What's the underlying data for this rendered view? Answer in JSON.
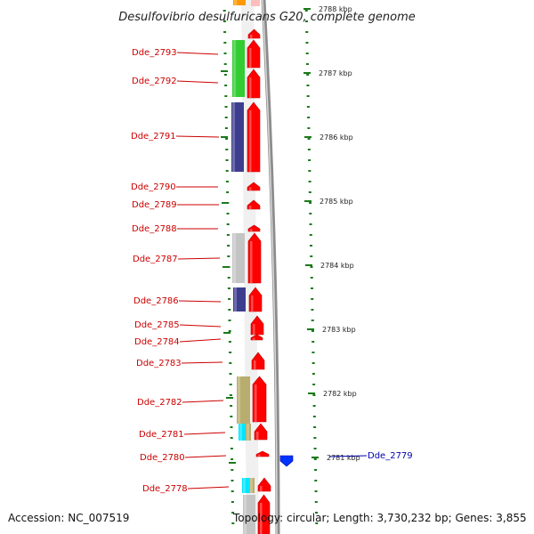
{
  "title": "Desulfovibrio desulfuricans G20, complete genome",
  "accession": "Accession: NC_007519",
  "topology": "Topology: circular; Length: 3,730,232 bp; Genes: 3,855",
  "colors": {
    "forward_gene": "#ff0000",
    "reverse_gene": "#0033ff",
    "forward_label": "#cc0000",
    "reverse_label": "#0000aa",
    "backbone": "#8c8c8c",
    "tick": "#1a7a1a"
  },
  "ticks": [
    {
      "label": "2788 kbp"
    },
    {
      "label": "2787 kbp"
    },
    {
      "label": "2786 kbp"
    },
    {
      "label": "2785 kbp"
    },
    {
      "label": "2784 kbp"
    },
    {
      "label": "2783 kbp"
    },
    {
      "label": "2782 kbp"
    },
    {
      "label": "2781 kbp"
    }
  ],
  "genes": [
    {
      "name": "Dde_2793",
      "strand": "forward"
    },
    {
      "name": "Dde_2792",
      "strand": "forward"
    },
    {
      "name": "Dde_2791",
      "strand": "forward"
    },
    {
      "name": "Dde_2790",
      "strand": "forward"
    },
    {
      "name": "Dde_2789",
      "strand": "forward"
    },
    {
      "name": "Dde_2788",
      "strand": "forward"
    },
    {
      "name": "Dde_2787",
      "strand": "forward"
    },
    {
      "name": "Dde_2786",
      "strand": "forward"
    },
    {
      "name": "Dde_2785",
      "strand": "forward"
    },
    {
      "name": "Dde_2784",
      "strand": "forward"
    },
    {
      "name": "Dde_2783",
      "strand": "forward"
    },
    {
      "name": "Dde_2782",
      "strand": "forward"
    },
    {
      "name": "Dde_2781",
      "strand": "forward"
    },
    {
      "name": "Dde_2780",
      "strand": "forward"
    },
    {
      "name": "Dde_2779",
      "strand": "reverse"
    },
    {
      "name": "Dde_2778",
      "strand": "forward"
    }
  ]
}
